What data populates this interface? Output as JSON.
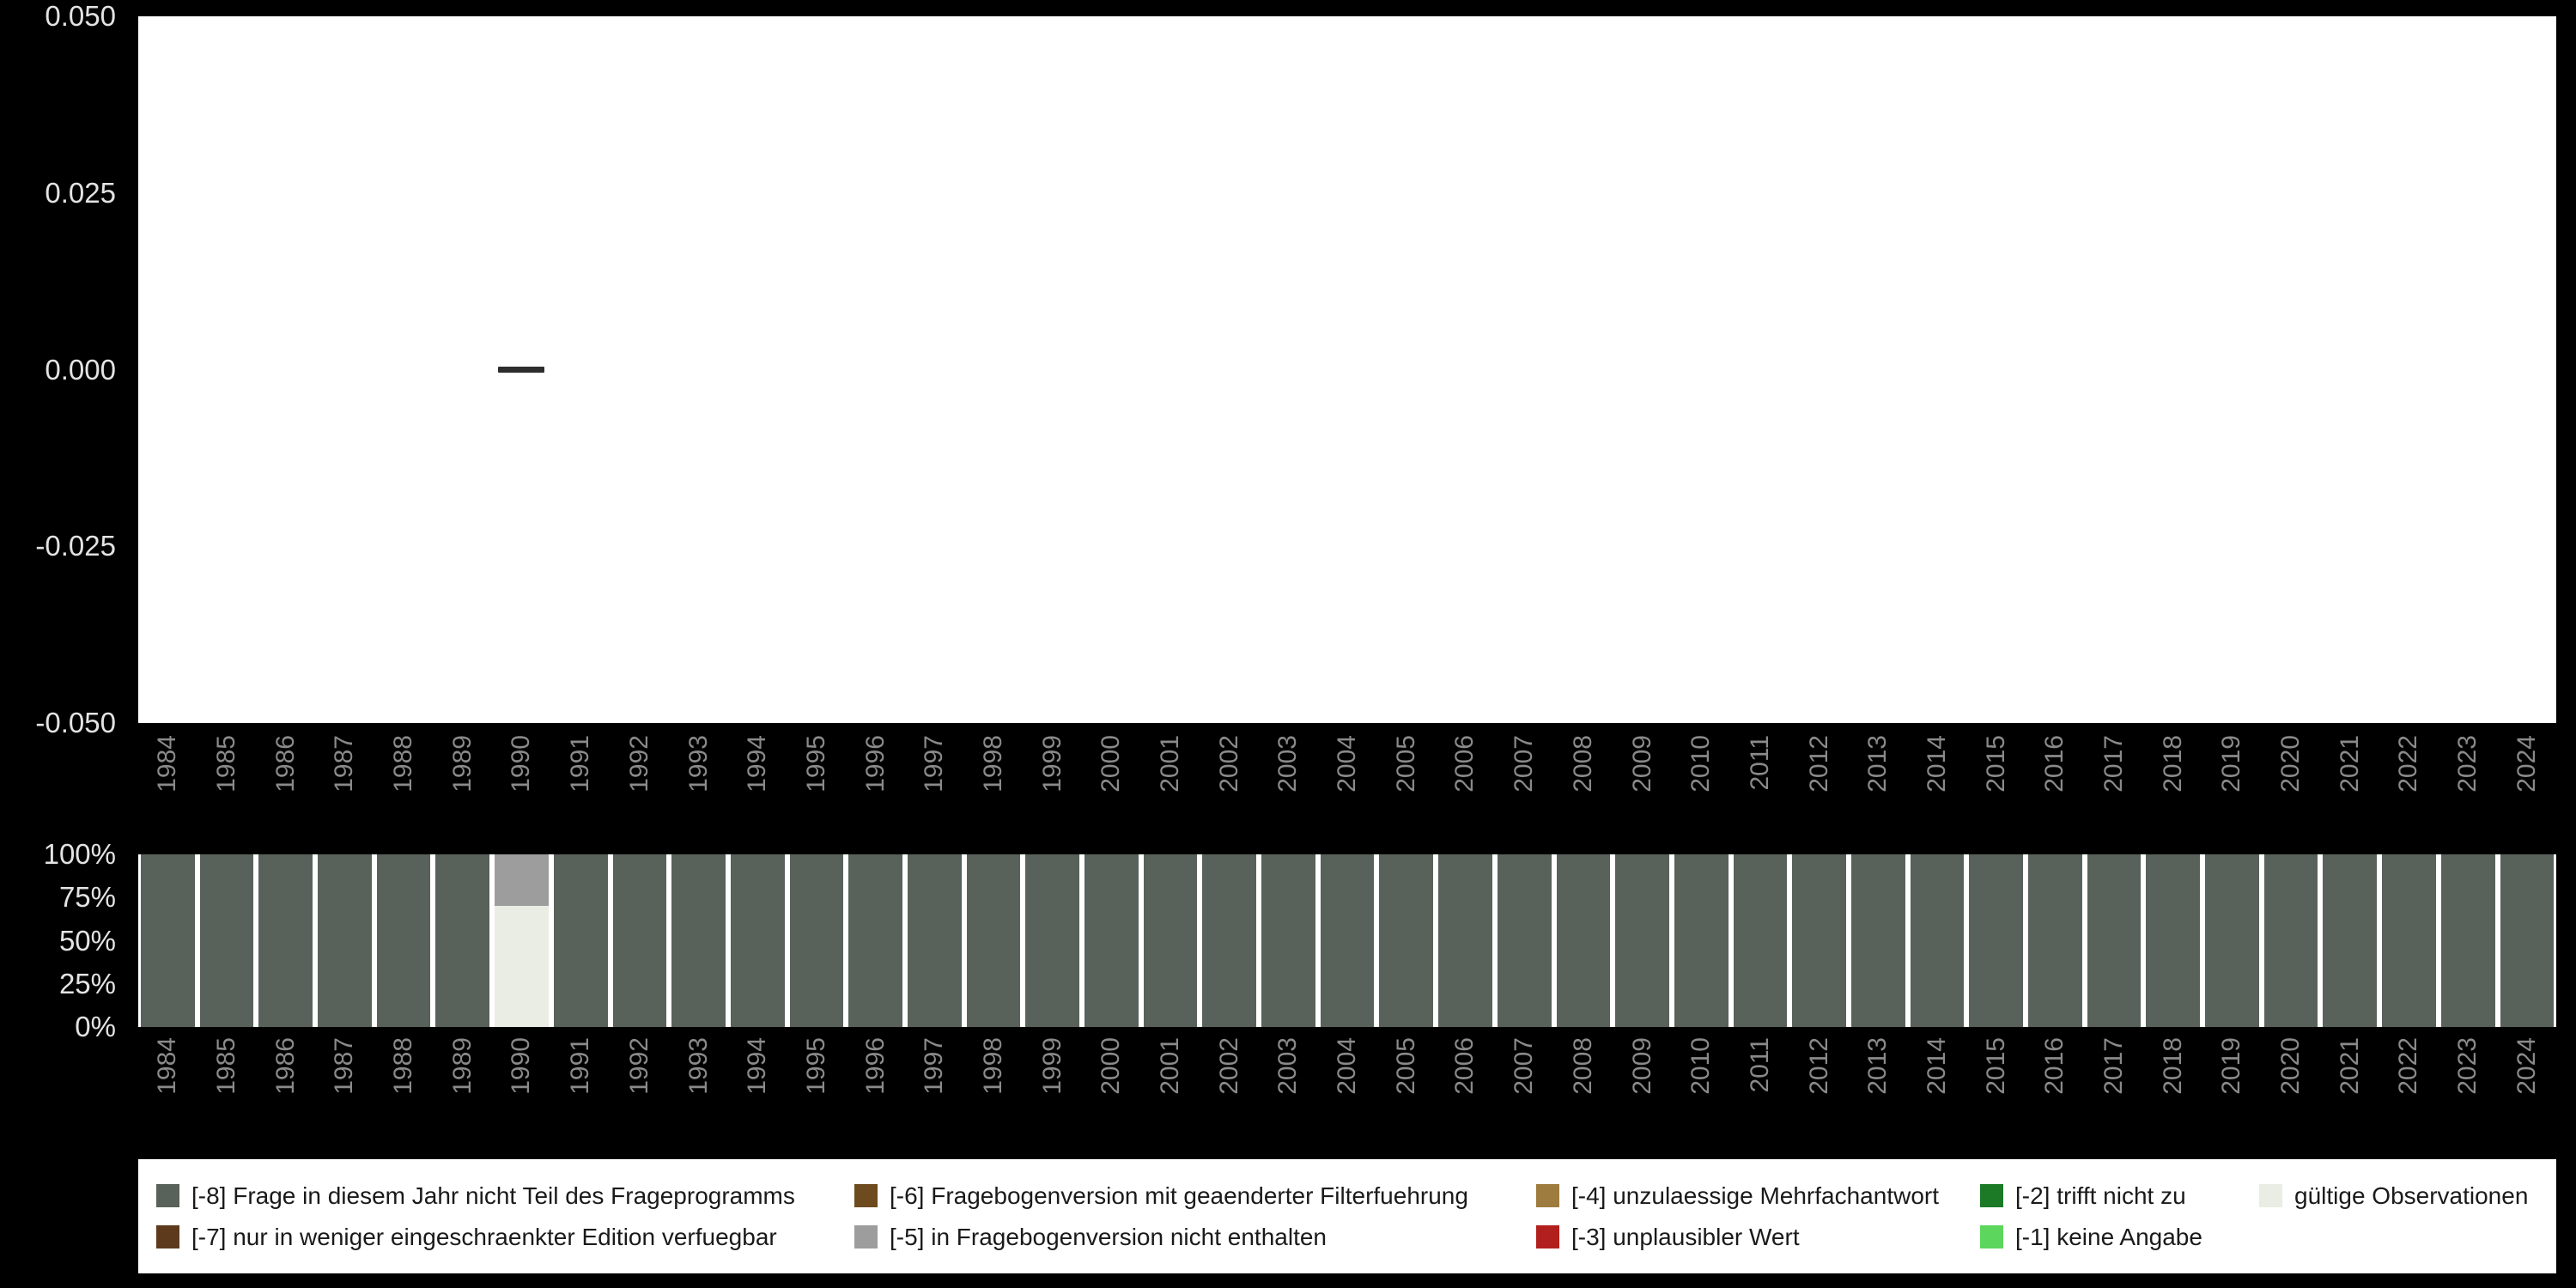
{
  "chart_data": [
    {
      "type": "line",
      "title": "",
      "categories": [
        "1984",
        "1985",
        "1986",
        "1987",
        "1988",
        "1989",
        "1990",
        "1991",
        "1992",
        "1993",
        "1994",
        "1995",
        "1996",
        "1997",
        "1998",
        "1999",
        "2000",
        "2001",
        "2002",
        "2003",
        "2004",
        "2005",
        "2006",
        "2007",
        "2008",
        "2009",
        "2010",
        "2011",
        "2012",
        "2013",
        "2014",
        "2015",
        "2016",
        "2017",
        "2018",
        "2019",
        "2020",
        "2021",
        "2022",
        "2023",
        "2024"
      ],
      "yticks": [
        "0.050",
        "0.025",
        "0.000",
        "-0.025",
        "-0.050"
      ],
      "ylim": [
        -0.05,
        0.05
      ],
      "grid": false,
      "series": [
        {
          "color": "#2d2d2d",
          "points": [
            {
              "x": "1990",
              "y": 0.0
            }
          ]
        }
      ]
    },
    {
      "type": "bar",
      "subtype": "stacked-percent",
      "title": "",
      "categories": [
        "1984",
        "1985",
        "1986",
        "1987",
        "1988",
        "1989",
        "1990",
        "1991",
        "1992",
        "1993",
        "1994",
        "1995",
        "1996",
        "1997",
        "1998",
        "1999",
        "2000",
        "2001",
        "2002",
        "2003",
        "2004",
        "2005",
        "2006",
        "2007",
        "2008",
        "2009",
        "2010",
        "2011",
        "2012",
        "2013",
        "2014",
        "2015",
        "2016",
        "2017",
        "2018",
        "2019",
        "2020",
        "2021",
        "2022",
        "2023",
        "2024"
      ],
      "yticks": [
        "100%",
        "75%",
        "50%",
        "25%",
        "0%"
      ],
      "ylim": [
        0,
        100
      ],
      "grid": false,
      "series": [
        {
          "name": "gültige Observationen",
          "color": "#eaede4",
          "values": [
            0,
            0,
            0,
            0,
            0,
            0,
            70,
            0,
            0,
            0,
            0,
            0,
            0,
            0,
            0,
            0,
            0,
            0,
            0,
            0,
            0,
            0,
            0,
            0,
            0,
            0,
            0,
            0,
            0,
            0,
            0,
            0,
            0,
            0,
            0,
            0,
            0,
            0,
            0,
            0,
            0
          ]
        },
        {
          "name": "[-5] in Fragebogenversion nicht enthalten",
          "color": "#9d9d9d",
          "values": [
            0,
            0,
            0,
            0,
            0,
            0,
            30,
            0,
            0,
            0,
            0,
            0,
            0,
            0,
            0,
            0,
            0,
            0,
            0,
            0,
            0,
            0,
            0,
            0,
            0,
            0,
            0,
            0,
            0,
            0,
            0,
            0,
            0,
            0,
            0,
            0,
            0,
            0,
            0,
            0,
            0
          ]
        },
        {
          "name": "[-8] Frage in diesem Jahr nicht Teil des Frageprogramms",
          "color": "#59625a",
          "values": [
            100,
            100,
            100,
            100,
            100,
            100,
            0,
            100,
            100,
            100,
            100,
            100,
            100,
            100,
            100,
            100,
            100,
            100,
            100,
            100,
            100,
            100,
            100,
            100,
            100,
            100,
            100,
            100,
            100,
            100,
            100,
            100,
            100,
            100,
            100,
            100,
            100,
            100,
            100,
            100,
            100
          ]
        }
      ],
      "legend_position": "bottom"
    }
  ],
  "legend": {
    "items": [
      {
        "label": "[-8] Frage in diesem Jahr nicht Teil des Frageprogramms",
        "color": "#59625a"
      },
      {
        "label": "[-6] Fragebogenversion mit geaenderter Filterfuehrung",
        "color": "#6e4a1f"
      },
      {
        "label": "[-4] unzulaessige Mehrfachantwort",
        "color": "#9e7b3e"
      },
      {
        "label": "[-2] trifft nicht zu",
        "color": "#1c7a27"
      },
      {
        "label": "gültige Observationen",
        "color": "#eaede4"
      },
      {
        "label": "[-7] nur in weniger eingeschraenkter Edition verfuegbar",
        "color": "#5e3a1c"
      },
      {
        "label": "[-5] in Fragebogenversion nicht enthalten",
        "color": "#9d9d9d"
      },
      {
        "label": "[-3] unplausibler Wert",
        "color": "#b2201e"
      },
      {
        "label": "[-1] keine Angabe",
        "color": "#5cd65c"
      }
    ]
  },
  "colors": {
    "page_background": "#000000",
    "plot_background": "#ffffff",
    "numeric_tick_label": "#e3e3e3",
    "year_tick_label": "#8a8a8a",
    "legend_text": "#1a1a1a"
  }
}
